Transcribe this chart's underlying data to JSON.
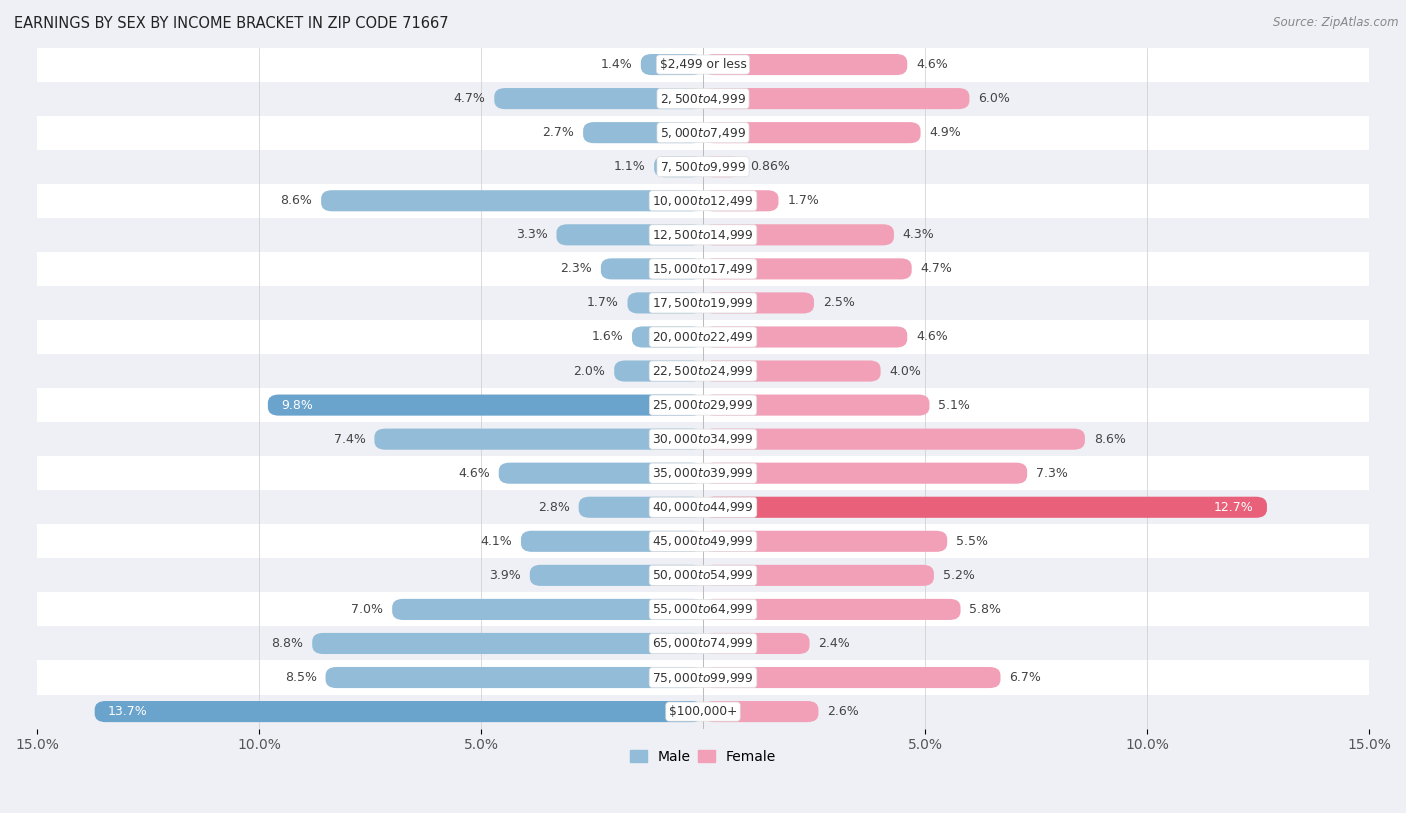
{
  "title": "EARNINGS BY SEX BY INCOME BRACKET IN ZIP CODE 71667",
  "source": "Source: ZipAtlas.com",
  "categories": [
    "$2,499 or less",
    "$2,500 to $4,999",
    "$5,000 to $7,499",
    "$7,500 to $9,999",
    "$10,000 to $12,499",
    "$12,500 to $14,999",
    "$15,000 to $17,499",
    "$17,500 to $19,999",
    "$20,000 to $22,499",
    "$22,500 to $24,999",
    "$25,000 to $29,999",
    "$30,000 to $34,999",
    "$35,000 to $39,999",
    "$40,000 to $44,999",
    "$45,000 to $49,999",
    "$50,000 to $54,999",
    "$55,000 to $64,999",
    "$65,000 to $74,999",
    "$75,000 to $99,999",
    "$100,000+"
  ],
  "male": [
    1.4,
    4.7,
    2.7,
    1.1,
    8.6,
    3.3,
    2.3,
    1.7,
    1.6,
    2.0,
    9.8,
    7.4,
    4.6,
    2.8,
    4.1,
    3.9,
    7.0,
    8.8,
    8.5,
    13.7
  ],
  "female": [
    4.6,
    6.0,
    4.9,
    0.86,
    1.7,
    4.3,
    4.7,
    2.5,
    4.6,
    4.0,
    5.1,
    8.6,
    7.3,
    12.7,
    5.5,
    5.2,
    5.8,
    2.4,
    6.7,
    2.6
  ],
  "male_color": "#92bcd8",
  "female_color": "#f2a0b8",
  "male_highlight_color": "#6aa3cc",
  "female_highlight_color": "#e8607a",
  "bg_color": "#eef0f5",
  "row_color_even": "#ffffff",
  "row_color_odd": "#eef0f5",
  "xlim": 15.0,
  "bar_height": 0.62,
  "label_fontsize": 9.0,
  "cat_fontsize": 8.8,
  "title_fontsize": 10.5,
  "source_fontsize": 8.5,
  "legend_fontsize": 10,
  "axis_tick_fontsize": 10
}
